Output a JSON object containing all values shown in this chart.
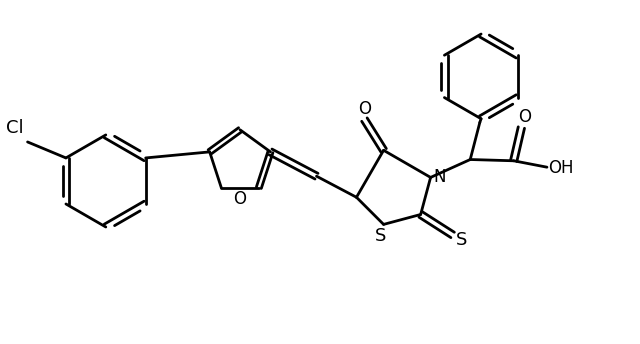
{
  "background_color": "#ffffff",
  "line_color": "#000000",
  "line_width": 2.0,
  "font_size": 12,
  "figsize": [
    6.4,
    3.44
  ],
  "dpi": 100,
  "xlim": [
    0,
    10
  ],
  "ylim": [
    0,
    5.38
  ]
}
